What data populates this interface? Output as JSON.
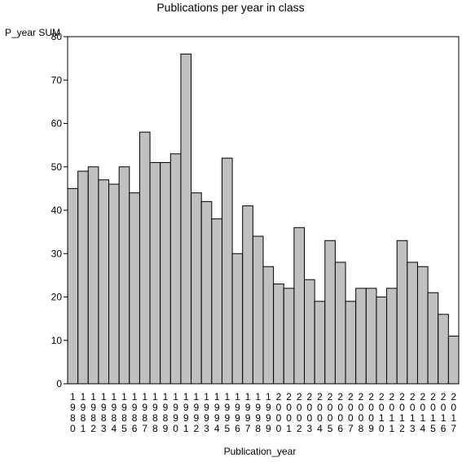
{
  "chart_data": {
    "type": "bar",
    "title": "Publications per year in class",
    "xlabel": "Publication_year",
    "ylabel": "P_year SUM",
    "ylim": [
      0,
      80
    ],
    "yticks": [
      0,
      10,
      20,
      30,
      40,
      50,
      60,
      70,
      80
    ],
    "categories": [
      "1980",
      "1981",
      "1982",
      "1983",
      "1984",
      "1985",
      "1986",
      "1987",
      "1988",
      "1989",
      "1990",
      "1991",
      "1992",
      "1993",
      "1994",
      "1995",
      "1996",
      "1997",
      "1998",
      "1999",
      "2000",
      "2001",
      "2002",
      "2003",
      "2004",
      "2005",
      "2006",
      "2007",
      "2008",
      "2009",
      "2010",
      "2011",
      "2012",
      "2013",
      "2014",
      "2015",
      "2016",
      "2017"
    ],
    "values": [
      45,
      49,
      50,
      47,
      46,
      50,
      44,
      58,
      51,
      51,
      53,
      76,
      44,
      42,
      38,
      52,
      30,
      41,
      34,
      27,
      23,
      22,
      36,
      24,
      19,
      33,
      28,
      19,
      22,
      22,
      20,
      22,
      33,
      28,
      27,
      21,
      16,
      11
    ],
    "bar_color": "#c0c0c0",
    "bar_edge_color": "#000000",
    "grid": false,
    "legend": "none"
  }
}
